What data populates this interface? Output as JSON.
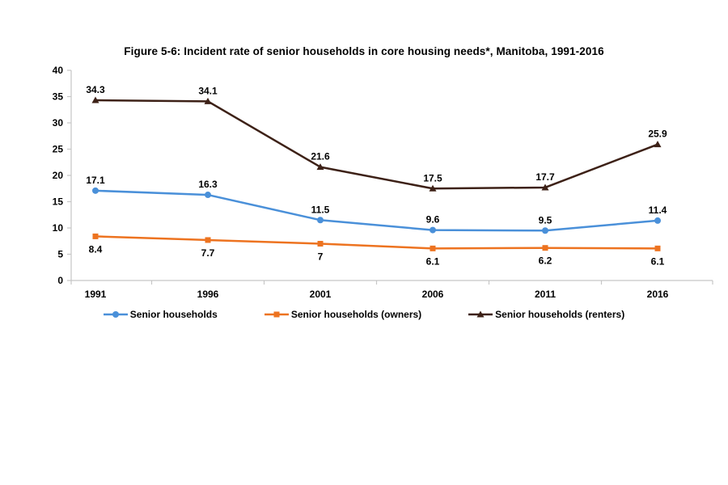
{
  "title": "Figure 5-6: Incident rate of senior households in core housing needs*, Manitoba, 1991-2016",
  "colors": {
    "axis": "#C6C6C6",
    "label_text": "#000000",
    "series_blue": "#4A90D9",
    "series_orange": "#ED7320",
    "series_brown": "#3D2117"
  },
  "chart_data": {
    "type": "line",
    "title": "Figure 5-6: Incident rate of senior households in core housing needs*, Manitoba, 1991-2016",
    "categories": [
      "1991",
      "1996",
      "2001",
      "2006",
      "2011",
      "2016"
    ],
    "series": [
      {
        "name": "Senior households",
        "color": "#4A90D9",
        "marker": "circle",
        "label_position": "above",
        "values": [
          17.1,
          16.3,
          11.5,
          9.6,
          9.5,
          11.4
        ]
      },
      {
        "name": "Senior households (owners)",
        "color": "#ED7320",
        "marker": "square",
        "label_position": "below",
        "values": [
          8.4,
          7.7,
          7,
          6.1,
          6.2,
          6.1
        ]
      },
      {
        "name": "Senior households (renters)",
        "color": "#3D2117",
        "marker": "triangle",
        "label_position": "above",
        "values": [
          34.3,
          34.1,
          21.6,
          17.5,
          17.7,
          25.9
        ]
      }
    ],
    "xlabel": "",
    "ylabel": "",
    "ylim": [
      0,
      40
    ],
    "y_ticks": [
      0,
      5,
      10,
      15,
      20,
      25,
      30,
      35,
      40
    ],
    "grid": false,
    "legend_position": "bottom",
    "data_labels": true
  }
}
